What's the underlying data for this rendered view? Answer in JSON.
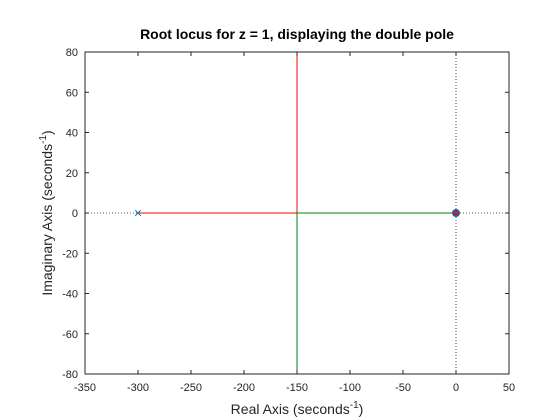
{
  "chart_data": {
    "type": "line",
    "title": "Root locus for z = 1, displaying the double pole",
    "xlabel": {
      "base": "Real Axis (seconds",
      "sup": "-1",
      "close": ")"
    },
    "ylabel": {
      "base": "Imaginary Axis (seconds",
      "sup": "-1",
      "close": ")"
    },
    "xlim": [
      -350,
      50
    ],
    "ylim": [
      -80,
      80
    ],
    "xticks": [
      -350,
      -300,
      -250,
      -200,
      -150,
      -100,
      -50,
      0,
      50
    ],
    "yticks": [
      -80,
      -60,
      -40,
      -20,
      0,
      20,
      40,
      60,
      80
    ],
    "grid": false,
    "series": [
      {
        "color": "#ff0000",
        "x": [
          -300,
          -150,
          -150
        ],
        "y": [
          0,
          0,
          80
        ]
      },
      {
        "color": "#008000",
        "x": [
          0,
          -150,
          -150
        ],
        "y": [
          0,
          0,
          -80
        ]
      }
    ],
    "poles": [
      {
        "x": -300,
        "y": 0,
        "color": "#0072bd"
      },
      {
        "x": 0,
        "y": 0,
        "color": "#0072bd"
      }
    ],
    "zeros": [
      {
        "x": 0,
        "y": 0,
        "color": "#0072bd"
      }
    ],
    "end_markers": [
      {
        "x": 0,
        "y": 0,
        "color": "#ff0000"
      }
    ]
  }
}
